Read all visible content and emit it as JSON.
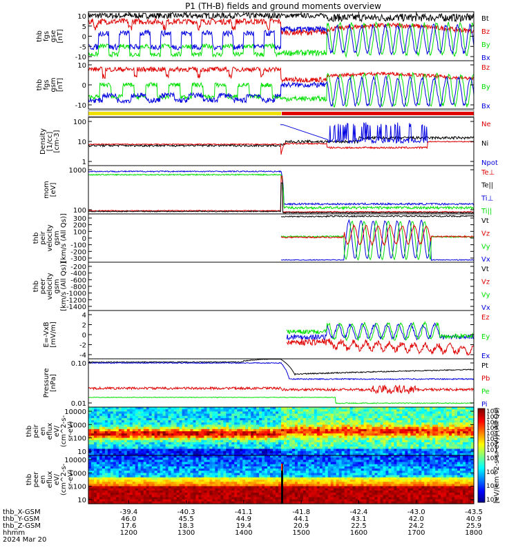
{
  "title": "P1 (TH-B) fields and ground moments overview",
  "colors": {
    "black": "#000000",
    "red": "#e00000",
    "green": "#00e000",
    "blue": "#0000e0",
    "yellow": "#f0e000",
    "barred": "#e00000"
  },
  "chart_data": [
    {
      "id": "p1",
      "type": "line",
      "ylabel": [
        "thb",
        "fgs",
        "gse",
        "[nT]"
      ],
      "yticks": [
        10,
        5,
        0,
        -5,
        -10
      ],
      "ylim": [
        -12,
        13
      ],
      "legend": [
        {
          "name": "Bt",
          "color": "#000000"
        },
        {
          "name": "Bz",
          "color": "#e00000"
        },
        {
          "name": "By",
          "color": "#00e000"
        },
        {
          "name": "Bx",
          "color": "#0000e0"
        }
      ]
    },
    {
      "id": "p2",
      "type": "line",
      "ylabel": [
        "thb",
        "fgs",
        "gsm",
        "[nT]"
      ],
      "yticks": [
        10,
        0,
        -10
      ],
      "ylim": [
        -14,
        14
      ],
      "legend": [
        {
          "name": "Bz",
          "color": "#e00000"
        },
        {
          "name": "By",
          "color": "#00e000"
        },
        {
          "name": "Bx",
          "color": "#0000e0"
        }
      ]
    },
    {
      "id": "p3",
      "type": "line",
      "ylabel": [
        "Density",
        "[1/cc]",
        "[cm-3]"
      ],
      "yticks": [
        "100",
        "10",
        "1"
      ],
      "legend": [
        {
          "name": "Ne",
          "color": "#e00000"
        },
        {
          "name": "Ni",
          "color": "#000000"
        },
        {
          "name": "Npot",
          "color": "#0000e0"
        }
      ]
    },
    {
      "id": "p4",
      "type": "line",
      "ylabel": [
        "mom",
        "[eV]"
      ],
      "yticks": [
        "1000",
        "100"
      ],
      "legend": [
        {
          "name": "Te⊥",
          "color": "#e00000"
        },
        {
          "name": "Te||",
          "color": "#000000"
        },
        {
          "name": "Ti⊥",
          "color": "#0000e0"
        },
        {
          "name": "Ti||",
          "color": "#00e000"
        }
      ]
    },
    {
      "id": "p5",
      "type": "line",
      "ylabel": [
        "thb",
        "peir",
        "velocity",
        "gsm",
        "[km/s (All Qs)]"
      ],
      "yticks": [
        300,
        200,
        100,
        0,
        -100,
        -200,
        -300
      ],
      "legend": [
        {
          "name": "Vt",
          "color": "#000000"
        },
        {
          "name": "Vz",
          "color": "#e00000"
        },
        {
          "name": "Vy",
          "color": "#00e000"
        },
        {
          "name": "Vx",
          "color": "#0000e0"
        }
      ]
    },
    {
      "id": "p6",
      "type": "line",
      "ylabel": [
        "thb",
        "peer",
        "velocity",
        "gsm",
        "[km/s (All Qs)]"
      ],
      "yticks": [
        -200,
        -400,
        -600,
        -800,
        -1000,
        -1200,
        -1400
      ],
      "legend": [
        {
          "name": "Vt",
          "color": "#000000"
        },
        {
          "name": "Vz",
          "color": "#e00000"
        },
        {
          "name": "Vy",
          "color": "#00e000"
        },
        {
          "name": "Vx",
          "color": "#0000e0"
        }
      ]
    },
    {
      "id": "p7",
      "type": "line",
      "ylabel": [
        "E=-VxB",
        "[mV/m]"
      ],
      "yticks": [
        4,
        2,
        0,
        -2,
        -4
      ],
      "legend": [
        {
          "name": "Ez",
          "color": "#e00000"
        },
        {
          "name": "Ey",
          "color": "#00e000"
        },
        {
          "name": "Ex",
          "color": "#0000e0"
        }
      ]
    },
    {
      "id": "p8",
      "type": "line",
      "ylabel": [
        "Pressure",
        "[nPa]"
      ],
      "yticks": [
        "0.10",
        "0.01"
      ],
      "legend": [
        {
          "name": "Pt",
          "color": "#000000"
        },
        {
          "name": "Pb",
          "color": "#e00000"
        },
        {
          "name": "Pe",
          "color": "#00e000"
        },
        {
          "name": "Pi",
          "color": "#0000e0"
        }
      ]
    },
    {
      "id": "p9",
      "type": "heatmap",
      "ylabel": [
        "thb",
        "peir",
        "en",
        "eflux",
        "eV/",
        "(cm^2-s-",
        "sr-eV)"
      ],
      "yticks": [
        "10000",
        "1000",
        "100",
        "10"
      ]
    },
    {
      "id": "p10",
      "type": "heatmap",
      "ylabel": [
        "thb",
        "peer",
        "en",
        "eflux",
        "eV/",
        "(cm^2-s-",
        "sr-eV)"
      ],
      "yticks": [
        "10000",
        "1000",
        "100",
        "10"
      ]
    }
  ],
  "colorbar": {
    "label": "[eV/(cm^2-s-sr-eV)] (All Qs)",
    "ticks": [
      "10^8",
      "10^7",
      "10^6",
      "10^5",
      "10^4",
      "10^3",
      "10^2",
      "10^1",
      "10^8",
      "10^6",
      "10^4",
      "10^2"
    ]
  },
  "xaxis": {
    "rows": [
      {
        "label": "thb_X-GSM",
        "values": [
          "-39.4",
          "-40.3",
          "-41.1",
          "-41.8",
          "-42.4",
          "-43.0",
          "-43.5"
        ]
      },
      {
        "label": "thb_Y-GSM",
        "values": [
          "46.0",
          "45.5",
          "44.9",
          "44.1",
          "43.1",
          "42.0",
          "40.9"
        ]
      },
      {
        "label": "thb_Z-GSM",
        "values": [
          "17.6",
          "18.3",
          "19.4",
          "20.9",
          "22.5",
          "24.2",
          "25.9"
        ]
      },
      {
        "label": "hhmm",
        "values": [
          "1200",
          "1300",
          "1400",
          "1500",
          "1600",
          "1700",
          "1800"
        ]
      }
    ],
    "date": "2024 Mar 20"
  }
}
